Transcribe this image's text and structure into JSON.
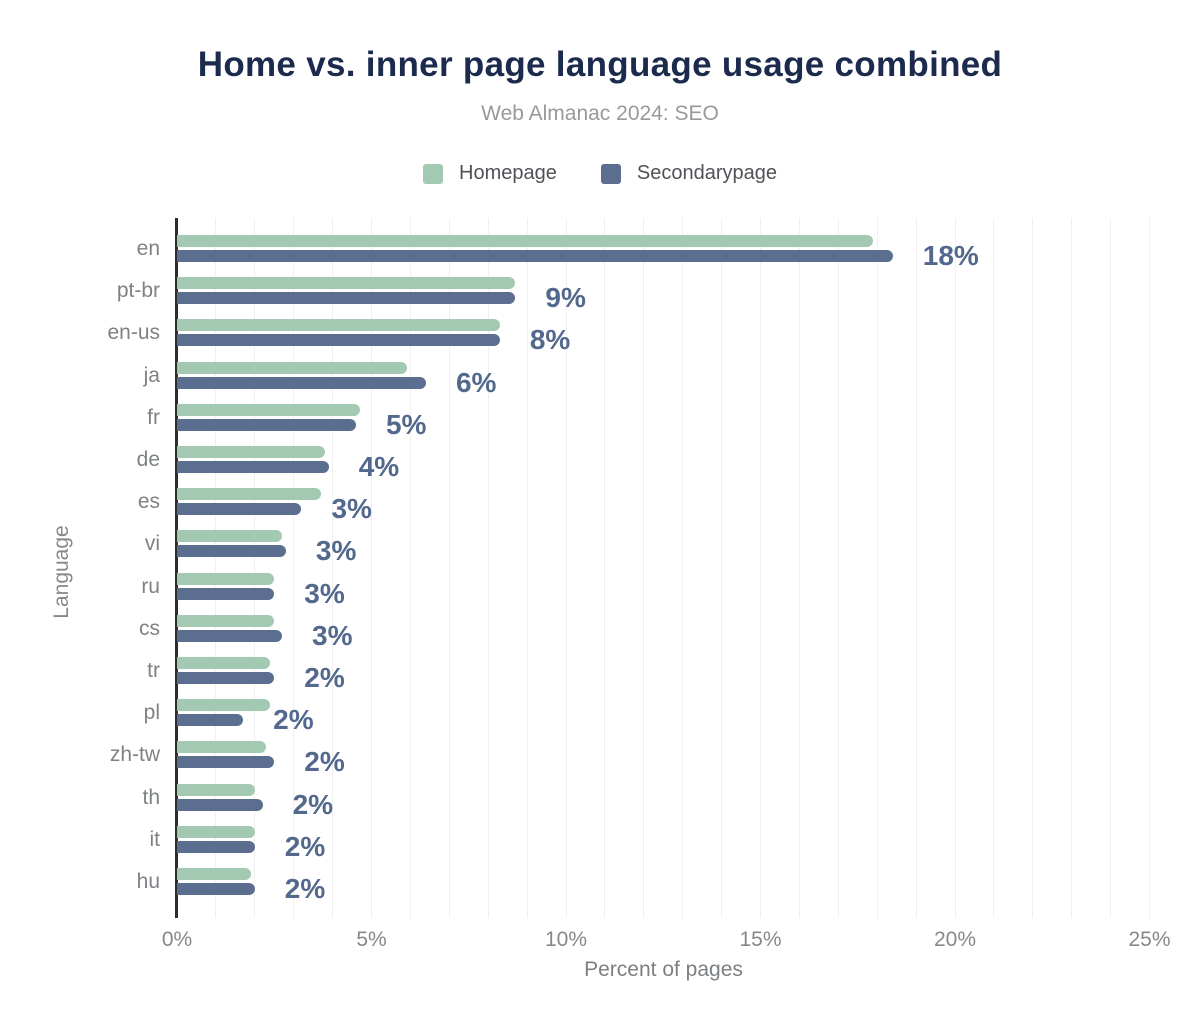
{
  "chart_data": {
    "type": "bar",
    "orientation": "horizontal",
    "title": "Home vs. inner page language usage combined",
    "subtitle": "Web Almanac 2024: SEO",
    "xlabel": "Percent of pages",
    "ylabel": "Language",
    "xlim": [
      0,
      25
    ],
    "x_tick_percents": [
      0,
      5,
      10,
      15,
      20,
      25
    ],
    "x_tick_labels": [
      "0%",
      "5%",
      "10%",
      "15%",
      "20%",
      "25%"
    ],
    "grid": "minor vertical lines every 1%",
    "legend_position": "top-center",
    "series": [
      {
        "name": "Homepage",
        "color": "#a4c9b3"
      },
      {
        "name": "Secondarypage",
        "color": "#5c6e8f"
      }
    ],
    "rows": [
      {
        "language": "en",
        "homepage": 17.9,
        "secondarypage": 18.4,
        "value_label": "18%"
      },
      {
        "language": "pt-br",
        "homepage": 8.7,
        "secondarypage": 8.7,
        "value_label": "9%"
      },
      {
        "language": "en-us",
        "homepage": 8.3,
        "secondarypage": 8.3,
        "value_label": "8%"
      },
      {
        "language": "ja",
        "homepage": 5.9,
        "secondarypage": 6.4,
        "value_label": "6%"
      },
      {
        "language": "fr",
        "homepage": 4.7,
        "secondarypage": 4.6,
        "value_label": "5%"
      },
      {
        "language": "de",
        "homepage": 3.8,
        "secondarypage": 3.9,
        "value_label": "4%"
      },
      {
        "language": "es",
        "homepage": 3.7,
        "secondarypage": 3.2,
        "value_label": "3%"
      },
      {
        "language": "vi",
        "homepage": 2.7,
        "secondarypage": 2.8,
        "value_label": "3%"
      },
      {
        "language": "ru",
        "homepage": 2.5,
        "secondarypage": 2.5,
        "value_label": "3%"
      },
      {
        "language": "cs",
        "homepage": 2.5,
        "secondarypage": 2.7,
        "value_label": "3%"
      },
      {
        "language": "tr",
        "homepage": 2.4,
        "secondarypage": 2.5,
        "value_label": "2%"
      },
      {
        "language": "pl",
        "homepage": 2.4,
        "secondarypage": 1.7,
        "value_label": "2%"
      },
      {
        "language": "zh-tw",
        "homepage": 2.3,
        "secondarypage": 2.5,
        "value_label": "2%"
      },
      {
        "language": "th",
        "homepage": 2.0,
        "secondarypage": 2.2,
        "value_label": "2%"
      },
      {
        "language": "it",
        "homepage": 2.0,
        "secondarypage": 2.0,
        "value_label": "2%"
      },
      {
        "language": "hu",
        "homepage": 1.9,
        "secondarypage": 2.0,
        "value_label": "2%"
      }
    ],
    "colors": {
      "title": "#1b2a4d",
      "subtitle": "#999999",
      "value_label": "#53688d",
      "axis_text": "#85888b",
      "axis_line": "#2d2d2d",
      "gridline": "#f1f0f0",
      "background": "#ffffff"
    }
  }
}
